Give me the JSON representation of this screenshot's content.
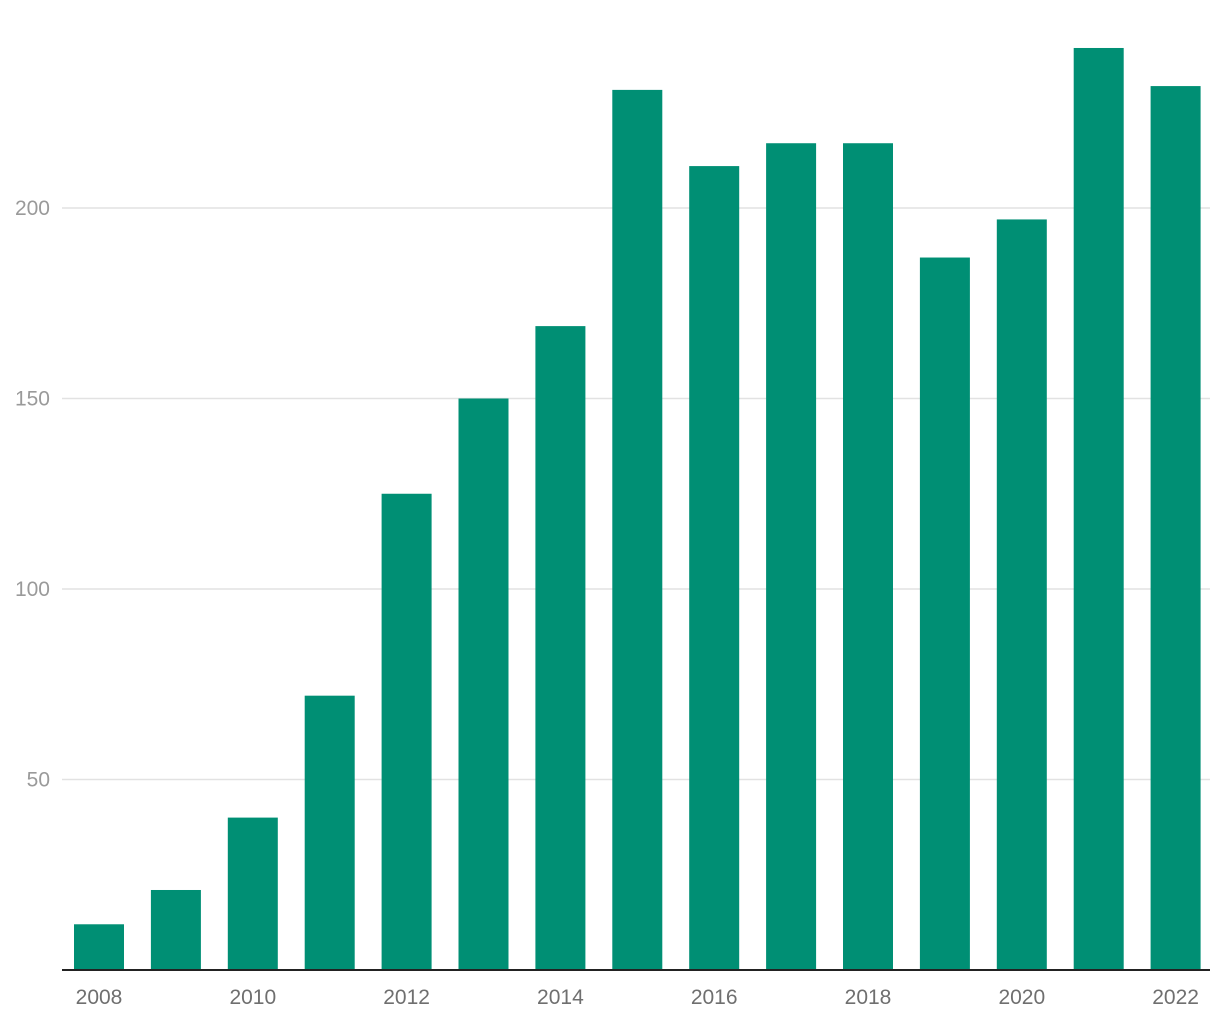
{
  "colors": {
    "bar": "#008f74",
    "grid": "#e2e2e2",
    "axis": "#222222"
  },
  "chart_data": {
    "type": "bar",
    "categories": [
      "2008",
      "2009",
      "2010",
      "2011",
      "2012",
      "2013",
      "2014",
      "2015",
      "2016",
      "2017",
      "2018",
      "2019",
      "2020",
      "2021",
      "2022"
    ],
    "values": [
      12,
      21,
      40,
      72,
      125,
      150,
      169,
      231,
      211,
      217,
      217,
      187,
      197,
      242,
      232
    ],
    "x_tick_labels": [
      "2008",
      "2010",
      "2012",
      "2014",
      "2016",
      "2018",
      "2020",
      "2022"
    ],
    "y_ticks": [
      50,
      100,
      150,
      200
    ],
    "ylim": [
      0,
      250
    ],
    "grid": true,
    "legend": "none",
    "title": "",
    "xlabel": "",
    "ylabel": ""
  }
}
